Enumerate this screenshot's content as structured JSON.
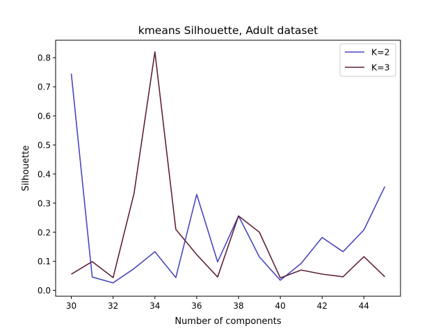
{
  "chart_data": {
    "type": "line",
    "title": "kmeans Silhouette, Adult dataset",
    "xlabel": "Number of components",
    "ylabel": "Silhouette",
    "xlim": [
      29.25,
      45.75
    ],
    "ylim": [
      -0.02,
      0.86
    ],
    "xticks": [
      30,
      32,
      34,
      36,
      38,
      40,
      42,
      44
    ],
    "yticks": [
      0.0,
      0.1,
      0.2,
      0.3,
      0.4,
      0.5,
      0.6,
      0.7,
      0.8
    ],
    "ytick_labels": [
      "0.0",
      "0.1",
      "0.2",
      "0.3",
      "0.4",
      "0.5",
      "0.6",
      "0.7",
      "0.8"
    ],
    "grid": false,
    "legend_position": "upper right",
    "x": [
      30,
      31,
      32,
      33,
      34,
      35,
      36,
      37,
      38,
      39,
      40,
      41,
      42,
      43,
      44,
      45
    ],
    "series": [
      {
        "name": "K=2",
        "color": "#4a46bd",
        "values": [
          0.745,
          0.046,
          0.026,
          0.075,
          0.133,
          0.044,
          0.33,
          0.098,
          0.256,
          0.115,
          0.035,
          0.093,
          0.182,
          0.133,
          0.208,
          0.357
        ]
      },
      {
        "name": "K=3",
        "color": "#5e2137",
        "values": [
          0.056,
          0.099,
          0.044,
          0.333,
          0.82,
          0.21,
          0.123,
          0.046,
          0.256,
          0.2,
          0.043,
          0.07,
          0.056,
          0.047,
          0.116,
          0.047
        ]
      }
    ]
  }
}
